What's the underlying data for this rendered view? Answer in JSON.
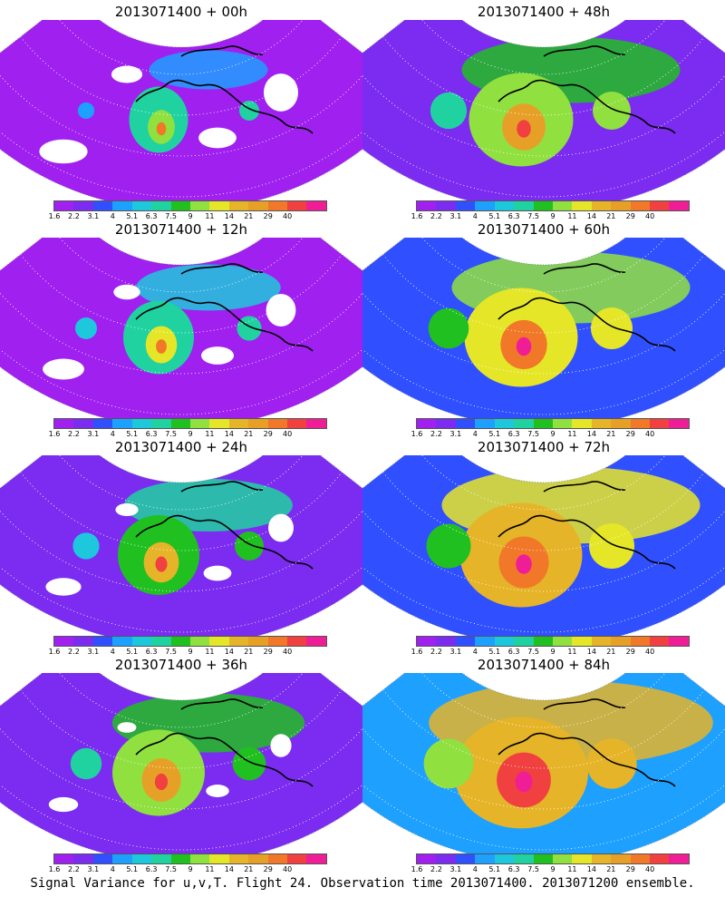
{
  "panels": [
    {
      "title": "2013071400 + 00h",
      "level": 0.05
    },
    {
      "title": "2013071400 + 48h",
      "level": 0.55
    },
    {
      "title": "2013071400 + 12h",
      "level": 0.18
    },
    {
      "title": "2013071400 + 60h",
      "level": 0.65
    },
    {
      "title": "2013071400 + 24h",
      "level": 0.3
    },
    {
      "title": "2013071400 + 72h",
      "level": 0.75
    },
    {
      "title": "2013071400 + 36h",
      "level": 0.42
    },
    {
      "title": "2013071400 + 84h",
      "level": 0.88
    }
  ],
  "colorbar": {
    "colors": [
      "#a020f0",
      "#7b2cf0",
      "#3050ff",
      "#1ea0ff",
      "#1ec8dc",
      "#20d2a0",
      "#20c020",
      "#90e040",
      "#e6e628",
      "#e6b428",
      "#e6a028",
      "#f07828",
      "#f04040",
      "#f01e96"
    ],
    "labels": [
      "1.6",
      "2.2",
      "3.1",
      "4",
      "5.1",
      "6.3",
      "7.5",
      "9",
      "11",
      "14",
      "21",
      "29",
      "40"
    ]
  },
  "footer": "Signal Variance for u,v,T. Flight 24. Observation time 2013071400. 2013071200 ensemble."
}
